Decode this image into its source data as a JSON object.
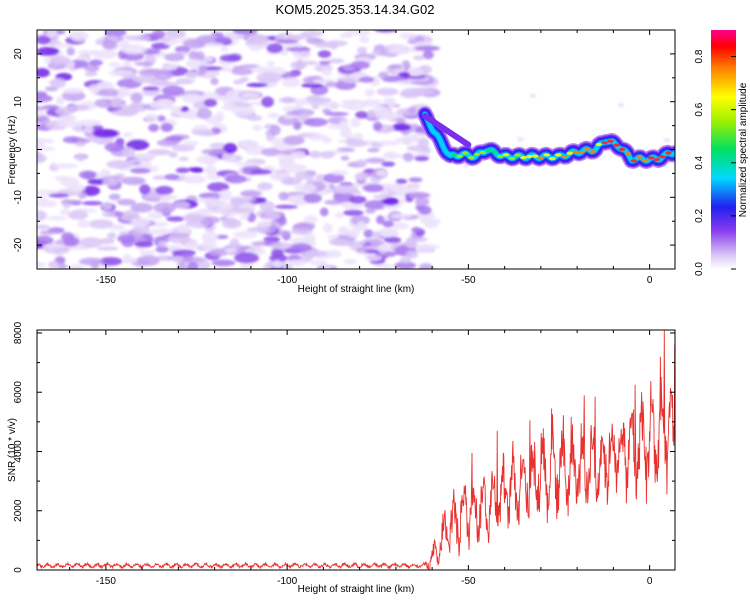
{
  "title": "KOM5.2025.353.14.34.G02",
  "chart_data": [
    {
      "type": "heatmap",
      "name": "spectrogram",
      "xlabel": "Height of straight line (km)",
      "ylabel": "Frequency (Hz)",
      "xlim": [
        -169,
        7
      ],
      "ylim": [
        -25,
        25
      ],
      "xticks": [
        -150,
        -100,
        -50,
        0
      ],
      "yticks": [
        -20,
        -10,
        0,
        10,
        20
      ],
      "noise_region_x": [
        -169,
        -62
      ],
      "signal_track": {
        "x": [
          -62,
          -58,
          -55,
          -52,
          -48,
          -45,
          -40,
          -35,
          -30,
          -25,
          -20,
          -15,
          -12,
          -8,
          -5,
          -2,
          2,
          5,
          7
        ],
        "freq": [
          7,
          2,
          -1.5,
          -1,
          -1.5,
          0,
          -1.5,
          -1.5,
          -1.5,
          -1.5,
          -0.5,
          0,
          2,
          0.5,
          -2,
          -2,
          -2,
          -1,
          -0.5
        ]
      },
      "colorbar": {
        "label": "Normalized spectral amplitude",
        "range": [
          0,
          0.9
        ],
        "ticks": [
          "0.0",
          "0.2",
          "0.4",
          "0.6",
          "0.8"
        ]
      }
    },
    {
      "type": "line",
      "name": "snr",
      "xlabel": "Height of straight line (km)",
      "ylabel": "SNR (10 * v/v)",
      "xlim": [
        -169,
        7
      ],
      "ylim": [
        0,
        8100
      ],
      "xticks": [
        -150,
        -100,
        -50,
        0
      ],
      "yticks": [
        0,
        2000,
        4000,
        6000,
        8000
      ],
      "color": "#e8312f",
      "trend": {
        "x": [
          -169,
          -62,
          -59,
          -55,
          -50,
          -45,
          -40,
          -35,
          -30,
          -25,
          -20,
          -15,
          -10,
          -5,
          0,
          7
        ],
        "y": [
          150,
          150,
          500,
          1500,
          2100,
          2200,
          2600,
          3000,
          3300,
          3500,
          3500,
          3600,
          3900,
          4100,
          4400,
          4700
        ]
      },
      "variability": {
        "x": [
          -169,
          -62,
          -59,
          -55,
          -50,
          -45,
          -40,
          -35,
          -30,
          -25,
          -20,
          -15,
          -10,
          -5,
          0,
          7
        ],
        "amp": [
          90,
          90,
          700,
          1500,
          1500,
          1400,
          1500,
          1700,
          1900,
          1900,
          1800,
          1800,
          1700,
          1900,
          2300,
          2200
        ]
      },
      "peaks": [
        {
          "x": -49,
          "y": 3950
        },
        {
          "x": -42,
          "y": 4700
        },
        {
          "x": -33,
          "y": 5050
        },
        {
          "x": -27,
          "y": 5450
        },
        {
          "x": -18,
          "y": 5900
        },
        {
          "x": -15,
          "y": 5850
        },
        {
          "x": -4,
          "y": 6250
        },
        {
          "x": 3,
          "y": 7200
        },
        {
          "x": 4,
          "y": 8100
        },
        {
          "x": 7,
          "y": 7600
        }
      ]
    }
  ]
}
